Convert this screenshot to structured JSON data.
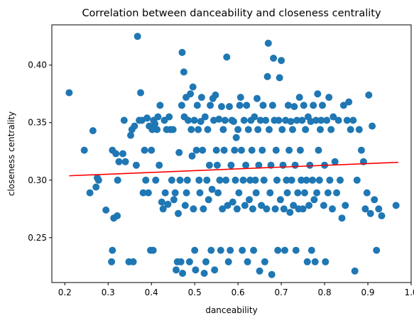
{
  "chart_data": {
    "type": "scatter",
    "title": "Correlation between danceability and closeness centrality",
    "xlabel": "danceability",
    "ylabel": "closeness centrality",
    "xlim": [
      0.17,
      1.0
    ],
    "ylim": [
      0.211,
      0.435
    ],
    "xticks": [
      "0.2",
      "0.3",
      "0.4",
      "0.5",
      "0.6",
      "0.7",
      "0.8",
      "0.9",
      "1.0"
    ],
    "yticks": [
      "0.25",
      "0.30",
      "0.35",
      "0.40"
    ],
    "grid": false,
    "colors": {
      "points": "#1f77b4",
      "trend": "#ff0000",
      "axes": "#000000"
    },
    "trend_line": {
      "x": [
        0.21,
        0.97
      ],
      "y": [
        0.3038,
        0.3155
      ]
    },
    "series": [
      {
        "values": [
          [
            0.21,
            0.376
          ],
          [
            0.245,
            0.326
          ],
          [
            0.258,
            0.289
          ],
          [
            0.265,
            0.343
          ],
          [
            0.272,
            0.294
          ],
          [
            0.275,
            0.302
          ],
          [
            0.278,
            0.3
          ],
          [
            0.295,
            0.274
          ],
          [
            0.31,
            0.239
          ],
          [
            0.308,
            0.229
          ],
          [
            0.31,
            0.326
          ],
          [
            0.313,
            0.267
          ],
          [
            0.318,
            0.323
          ],
          [
            0.321,
            0.269
          ],
          [
            0.322,
            0.3
          ],
          [
            0.325,
            0.316
          ],
          [
            0.334,
            0.323
          ],
          [
            0.337,
            0.352
          ],
          [
            0.34,
            0.316
          ],
          [
            0.348,
            0.229
          ],
          [
            0.352,
            0.339
          ],
          [
            0.355,
            0.344
          ],
          [
            0.358,
            0.229
          ],
          [
            0.361,
            0.347
          ],
          [
            0.365,
            0.313
          ],
          [
            0.368,
            0.425
          ],
          [
            0.372,
            0.352
          ],
          [
            0.375,
            0.376
          ],
          [
            0.378,
            0.352
          ],
          [
            0.381,
            0.289
          ],
          [
            0.384,
            0.326
          ],
          [
            0.387,
            0.3
          ],
          [
            0.39,
            0.354
          ],
          [
            0.393,
            0.289
          ],
          [
            0.395,
            0.347
          ],
          [
            0.398,
            0.239
          ],
          [
            0.4,
            0.326
          ],
          [
            0.402,
            0.344
          ],
          [
            0.404,
            0.239
          ],
          [
            0.405,
            0.352
          ],
          [
            0.408,
            0.349
          ],
          [
            0.41,
            0.3
          ],
          [
            0.413,
            0.344
          ],
          [
            0.415,
            0.355
          ],
          [
            0.418,
            0.313
          ],
          [
            0.42,
            0.365
          ],
          [
            0.424,
            0.281
          ],
          [
            0.427,
            0.275
          ],
          [
            0.43,
            0.352
          ],
          [
            0.432,
            0.289
          ],
          [
            0.435,
            0.344
          ],
          [
            0.438,
            0.279
          ],
          [
            0.441,
            0.355
          ],
          [
            0.444,
            0.344
          ],
          [
            0.447,
            0.3
          ],
          [
            0.45,
            0.344
          ],
          [
            0.452,
            0.283
          ],
          [
            0.455,
            0.289
          ],
          [
            0.457,
            0.222
          ],
          [
            0.46,
            0.229
          ],
          [
            0.462,
            0.271
          ],
          [
            0.464,
            0.324
          ],
          [
            0.466,
            0.3
          ],
          [
            0.468,
            0.229
          ],
          [
            0.47,
            0.365
          ],
          [
            0.471,
            0.411
          ],
          [
            0.472,
            0.219
          ],
          [
            0.475,
            0.394
          ],
          [
            0.476,
            0.355
          ],
          [
            0.478,
            0.278
          ],
          [
            0.48,
            0.372
          ],
          [
            0.481,
            0.289
          ],
          [
            0.483,
            0.3
          ],
          [
            0.485,
            0.352
          ],
          [
            0.488,
            0.229
          ],
          [
            0.49,
            0.375
          ],
          [
            0.492,
            0.344
          ],
          [
            0.494,
            0.321
          ],
          [
            0.496,
            0.381
          ],
          [
            0.497,
            0.275
          ],
          [
            0.499,
            0.352
          ],
          [
            0.5,
            0.239
          ],
          [
            0.502,
            0.222
          ],
          [
            0.504,
            0.326
          ],
          [
            0.506,
            0.365
          ],
          [
            0.508,
            0.344
          ],
          [
            0.51,
            0.3
          ],
          [
            0.512,
            0.289
          ],
          [
            0.514,
            0.351
          ],
          [
            0.516,
            0.372
          ],
          [
            0.518,
            0.326
          ],
          [
            0.52,
            0.275
          ],
          [
            0.522,
            0.219
          ],
          [
            0.524,
            0.355
          ],
          [
            0.526,
            0.229
          ],
          [
            0.528,
            0.3
          ],
          [
            0.53,
            0.344
          ],
          [
            0.532,
            0.283
          ],
          [
            0.534,
            0.313
          ],
          [
            0.536,
            0.365
          ],
          [
            0.538,
            0.239
          ],
          [
            0.54,
            0.292
          ],
          [
            0.542,
            0.371
          ],
          [
            0.544,
            0.352
          ],
          [
            0.546,
            0.222
          ],
          [
            0.548,
            0.374
          ],
          [
            0.55,
            0.326
          ],
          [
            0.552,
            0.313
          ],
          [
            0.554,
            0.289
          ],
          [
            0.556,
            0.353
          ],
          [
            0.558,
            0.3
          ],
          [
            0.56,
            0.239
          ],
          [
            0.562,
            0.364
          ],
          [
            0.564,
            0.275
          ],
          [
            0.566,
            0.344
          ],
          [
            0.568,
            0.326
          ],
          [
            0.57,
            0.352
          ],
          [
            0.572,
            0.3
          ],
          [
            0.574,
            0.407
          ],
          [
            0.576,
            0.278
          ],
          [
            0.578,
            0.229
          ],
          [
            0.58,
            0.364
          ],
          [
            0.582,
            0.239
          ],
          [
            0.584,
            0.313
          ],
          [
            0.586,
            0.352
          ],
          [
            0.588,
            0.281
          ],
          [
            0.59,
            0.351
          ],
          [
            0.592,
            0.326
          ],
          [
            0.594,
            0.3
          ],
          [
            0.596,
            0.337
          ],
          [
            0.598,
            0.275
          ],
          [
            0.6,
            0.344
          ],
          [
            0.602,
            0.289
          ],
          [
            0.604,
            0.365
          ],
          [
            0.606,
            0.372
          ],
          [
            0.608,
            0.326
          ],
          [
            0.61,
            0.239
          ],
          [
            0.612,
            0.3
          ],
          [
            0.614,
            0.352
          ],
          [
            0.616,
            0.278
          ],
          [
            0.618,
            0.313
          ],
          [
            0.62,
            0.365
          ],
          [
            0.622,
            0.229
          ],
          [
            0.624,
            0.344
          ],
          [
            0.626,
            0.283
          ],
          [
            0.628,
            0.3
          ],
          [
            0.63,
            0.352
          ],
          [
            0.632,
            0.326
          ],
          [
            0.634,
            0.275
          ],
          [
            0.636,
            0.239
          ],
          [
            0.638,
            0.355
          ],
          [
            0.64,
            0.3
          ],
          [
            0.642,
            0.289
          ],
          [
            0.644,
            0.371
          ],
          [
            0.646,
            0.344
          ],
          [
            0.648,
            0.313
          ],
          [
            0.65,
            0.221
          ],
          [
            0.652,
            0.352
          ],
          [
            0.654,
            0.278
          ],
          [
            0.656,
            0.326
          ],
          [
            0.658,
            0.365
          ],
          [
            0.66,
            0.3
          ],
          [
            0.662,
            0.229
          ],
          [
            0.664,
            0.352
          ],
          [
            0.666,
            0.275
          ],
          [
            0.668,
            0.39
          ],
          [
            0.67,
            0.419
          ],
          [
            0.672,
            0.344
          ],
          [
            0.674,
            0.289
          ],
          [
            0.676,
            0.313
          ],
          [
            0.678,
            0.218
          ],
          [
            0.68,
            0.365
          ],
          [
            0.682,
            0.406
          ],
          [
            0.684,
            0.352
          ],
          [
            0.686,
            0.275
          ],
          [
            0.688,
            0.326
          ],
          [
            0.69,
            0.3
          ],
          [
            0.692,
            0.239
          ],
          [
            0.694,
            0.352
          ],
          [
            0.696,
            0.389
          ],
          [
            0.698,
            0.283
          ],
          [
            0.7,
            0.404
          ],
          [
            0.702,
            0.344
          ],
          [
            0.704,
            0.313
          ],
          [
            0.706,
            0.275
          ],
          [
            0.708,
            0.239
          ],
          [
            0.71,
            0.352
          ],
          [
            0.712,
            0.3
          ],
          [
            0.714,
            0.289
          ],
          [
            0.716,
            0.365
          ],
          [
            0.718,
            0.326
          ],
          [
            0.72,
            0.272
          ],
          [
            0.722,
            0.351
          ],
          [
            0.724,
            0.3
          ],
          [
            0.726,
            0.344
          ],
          [
            0.728,
            0.278
          ],
          [
            0.73,
            0.364
          ],
          [
            0.732,
            0.313
          ],
          [
            0.734,
            0.239
          ],
          [
            0.736,
            0.352
          ],
          [
            0.738,
            0.289
          ],
          [
            0.74,
            0.275
          ],
          [
            0.742,
            0.372
          ],
          [
            0.744,
            0.326
          ],
          [
            0.746,
            0.3
          ],
          [
            0.748,
            0.352
          ],
          [
            0.75,
            0.275
          ],
          [
            0.752,
            0.365
          ],
          [
            0.754,
            0.289
          ],
          [
            0.756,
            0.344
          ],
          [
            0.758,
            0.3
          ],
          [
            0.76,
            0.229
          ],
          [
            0.762,
            0.355
          ],
          [
            0.764,
            0.278
          ],
          [
            0.766,
            0.313
          ],
          [
            0.768,
            0.351
          ],
          [
            0.77,
            0.239
          ],
          [
            0.772,
            0.3
          ],
          [
            0.774,
            0.365
          ],
          [
            0.776,
            0.283
          ],
          [
            0.778,
            0.229
          ],
          [
            0.78,
            0.352
          ],
          [
            0.782,
            0.289
          ],
          [
            0.784,
            0.375
          ],
          [
            0.786,
            0.326
          ],
          [
            0.788,
            0.3
          ],
          [
            0.79,
            0.344
          ],
          [
            0.792,
            0.352
          ],
          [
            0.795,
            0.365
          ],
          [
            0.798,
            0.278
          ],
          [
            0.8,
            0.313
          ],
          [
            0.802,
            0.229
          ],
          [
            0.805,
            0.352
          ],
          [
            0.808,
            0.289
          ],
          [
            0.81,
            0.372
          ],
          [
            0.812,
            0.3
          ],
          [
            0.815,
            0.344
          ],
          [
            0.818,
            0.275
          ],
          [
            0.82,
            0.355
          ],
          [
            0.824,
            0.316
          ],
          [
            0.828,
            0.289
          ],
          [
            0.832,
            0.352
          ],
          [
            0.836,
            0.3
          ],
          [
            0.84,
            0.267
          ],
          [
            0.844,
            0.365
          ],
          [
            0.848,
            0.278
          ],
          [
            0.852,
            0.352
          ],
          [
            0.856,
            0.368
          ],
          [
            0.86,
            0.344
          ],
          [
            0.866,
            0.352
          ],
          [
            0.87,
            0.221
          ],
          [
            0.875,
            0.3
          ],
          [
            0.88,
            0.344
          ],
          [
            0.885,
            0.326
          ],
          [
            0.89,
            0.316
          ],
          [
            0.894,
            0.275
          ],
          [
            0.898,
            0.289
          ],
          [
            0.902,
            0.374
          ],
          [
            0.906,
            0.271
          ],
          [
            0.91,
            0.347
          ],
          [
            0.915,
            0.283
          ],
          [
            0.92,
            0.239
          ],
          [
            0.925,
            0.275
          ],
          [
            0.932,
            0.269
          ],
          [
            0.965,
            0.278
          ]
        ]
      }
    ]
  }
}
